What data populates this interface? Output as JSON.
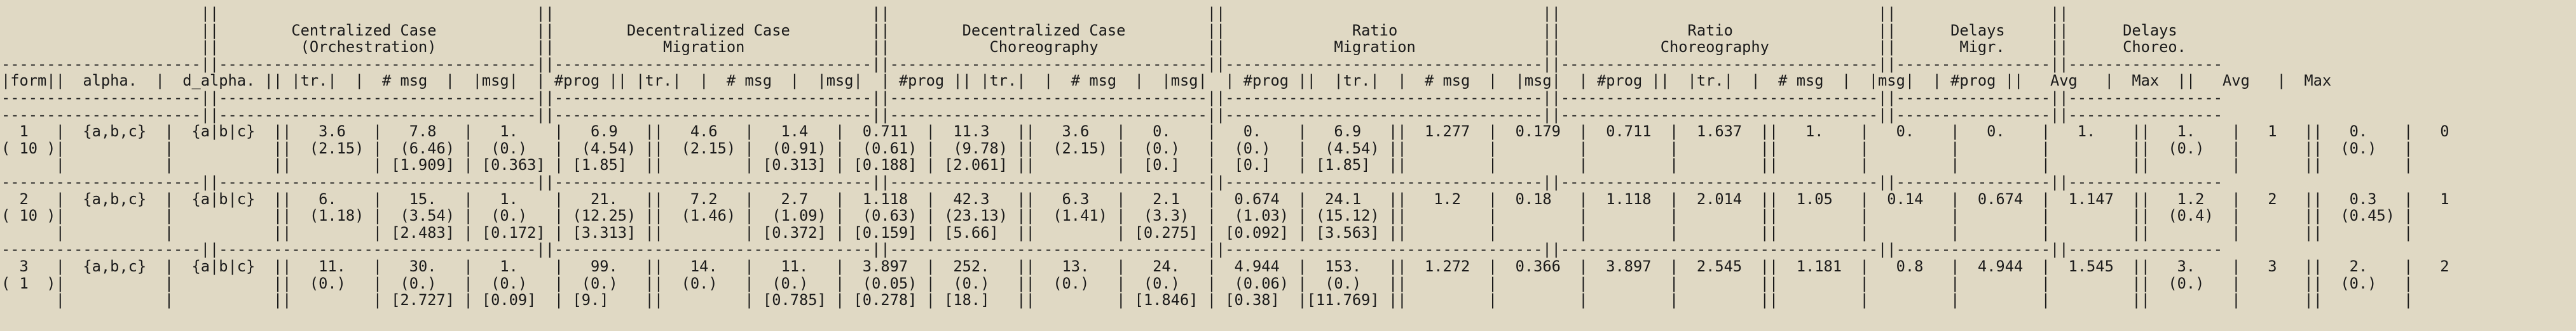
{
  "document": {
    "lines": [
      "                      ||                                   ||                                   ||                                   ||                                   ||                                   ||                 ||                 ",
      "                      ||        Centralized Case           ||        Decentralized Case         ||        Decentralized Case         ||              Ratio                ||              Ratio                ||      Delays     ||      Delays     ",
      "                      ||         (Orchestration)           ||            Migration              ||           Choreography            ||            Migration              ||           Choreography            ||       Migr.     ||      Choreo.    ",
      "----------------------||-----------------------------------||-----------------------------------||-----------------------------------||-----------------------------------||-----------------------------------||-----------------||-----------------",
      "|form||  alpha.  |  d_alpha. || |tr.|  |  # msg  |  |msg|  | #prog || |tr.|  |  # msg  |  |msg|  | #prog || |tr.|  |  # msg  |  |msg|  | #prog ||  |tr.|  |  # msg  |  |msg|  | #prog ||  |tr.|  |  # msg  |  |msg|  | #prog ||   Avg   |  Max  ||   Avg   |  Max  ",
      "----------------------||-----------------------------------||-----------------------------------||-----------------------------------||-----------------------------------||-----------------------------------||-----------------||-----------------",
      "----------------------||-----------------------------------||-----------------------------------||-----------------------------------||-----------------------------------||-----------------------------------||-----------------||-----------------",
      "  1   |  {a,b,c}  |  {a|b|c}  ||   3.6   |   7.8   |   1.    |   6.9   ||   4.6   |   1.4   |  0.711  |  11.3   ||   3.6   |   0.    |   0.    |   6.9   ||  1.277  |  0.179  |  0.711  |  1.637  ||   1.    |   0.    |   0.    |   1.    ||   1.    |   1   ||   0.    |   0   ",
      "( 10 )|           |           ||  (2.15) |  (6.46) |  (0.)   |  (4.54) ||  (2.15) |  (0.91) |  (0.61) |  (9.78) ||  (2.15) |  (0.)   |  (0.)   |  (4.54) ||         |         |         |         ||         |         |         |         ||  (0.)   |       ||  (0.)   |       ",
      "      |           |           ||         | [1.909] | [0.363] | [1.85]  ||         | [0.313] | [0.188] | [2.061] ||         |  [0.]   |  [0.]   | [1.85]  ||         |         |         |         ||         |         |         |         ||         |       ||         |       ",
      "----------------------||-----------------------------------||-----------------------------------||-----------------------------------||-----------------------------------||-----------------------------------||-----------------||-----------------",
      "  2   |  {a,b,c}  |  {a|b|c}  ||   6.    |   15.   |   1.    |   21.   ||   7.2   |   2.7   |  1.118  |  42.3   ||   6.3   |   2.1   |  0.674  |  24.1   ||   1.2   |  0.18   |  1.118  |  2.014  ||  1.05   |  0.14   |  0.674  |  1.147  ||   1.2   |   2   ||   0.3   |   1   ",
      "( 10 )|           |           ||  (1.18) |  (3.54) |  (0.)   | (12.25) ||  (1.46) |  (1.09) |  (0.63) | (23.13) ||  (1.41) |  (3.3)  |  (1.03) | (15.12) ||         |         |         |         ||         |         |         |         ||  (0.4)  |       ||  (0.45) |       ",
      "      |           |           ||         | [2.483] | [0.172] | [3.313] ||         | [0.372] | [0.159] | [5.66]  ||         | [0.275] | [0.092] | [3.563] ||         |         |         |         ||         |         |         |         ||         |       ||         |       ",
      "----------------------||-----------------------------------||-----------------------------------||-----------------------------------||-----------------------------------||-----------------------------------||-----------------||-----------------",
      "  3   |  {a,b,c}  |  {a|b|c}  ||   11.   |   30.   |   1.    |   99.   ||   14.   |   11.   |  3.897  |  252.   ||   13.   |   24.   |  4.944  |  153.   ||  1.272  |  0.366  |  3.897  |  2.545  ||  1.181  |   0.8   |  4.944  |  1.545  ||   3.    |   3   ||   2.    |   2   ",
      "( 1  )|           |           ||  (0.)   |  (0.)   |  (0.)   |  (0.)   ||  (0.)   |  (0.)   |  (0.05) |  (0.)   ||  (0.)   |  (0.)   |  (0.06) |  (0.)   ||         |         |         |         ||         |         |         |         ||  (0.)   |       ||  (0.)   |       ",
      "      |           |           ||         | [2.727] | [0.09]  | [9.]    ||         | [0.785] | [0.278] | [18.]   ||         | [1.846] | [0.38]  |[11.769] ||         |         |         |         ||         |         |         |         ||         |       ||         |       "
    ]
  }
}
